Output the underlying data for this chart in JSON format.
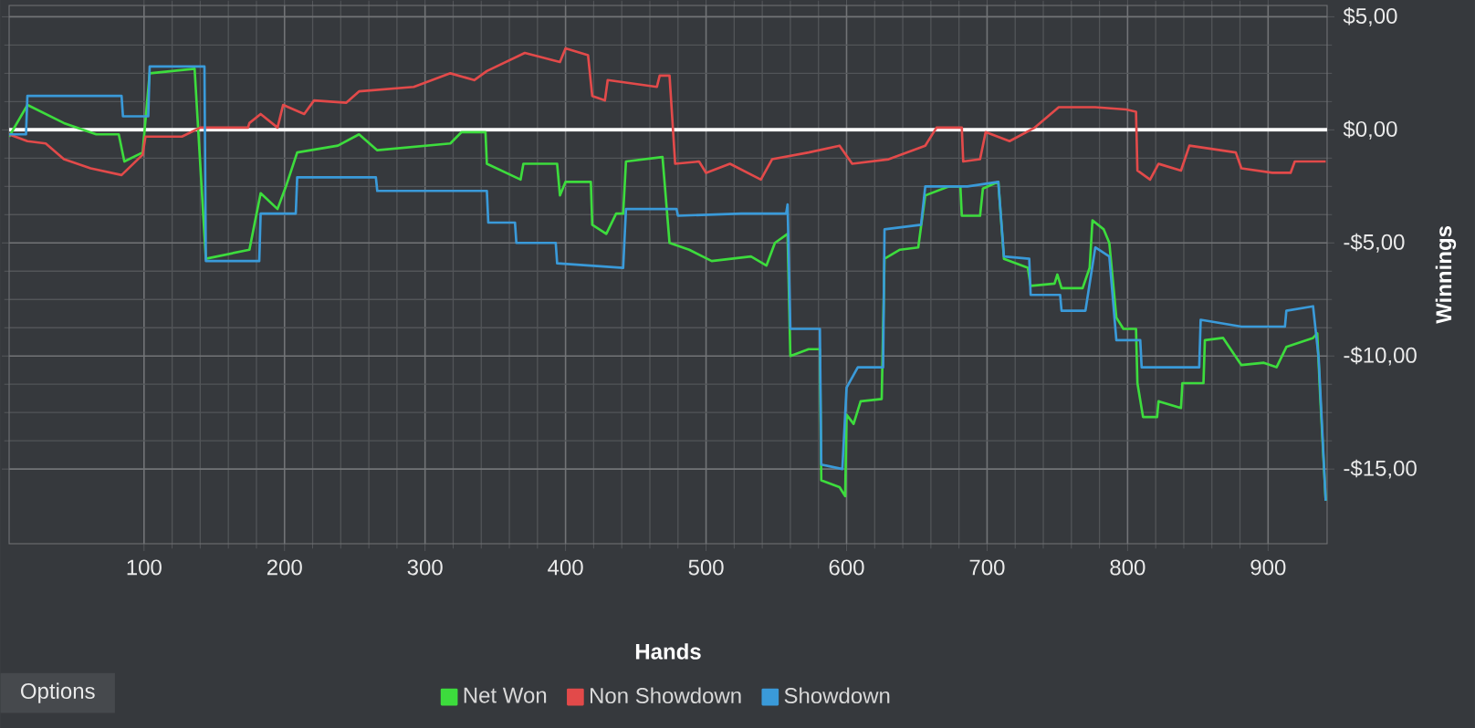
{
  "chart_data": {
    "type": "line",
    "xlabel": "Hands",
    "ylabel": "Winnings",
    "xlim": [
      4,
      942
    ],
    "ylim": [
      -18.3,
      5.5
    ],
    "xticks": [
      100,
      200,
      300,
      400,
      500,
      600,
      700,
      800,
      900
    ],
    "yticks": [
      {
        "value": 5,
        "label": "$5,00"
      },
      {
        "value": 0,
        "label": "$0,00"
      },
      {
        "value": -5,
        "label": "-$5,00"
      },
      {
        "value": -10,
        "label": "-$10,00"
      },
      {
        "value": -15,
        "label": "-$15,00"
      }
    ],
    "grid": true,
    "legend": "bottom",
    "marker": "none",
    "line_style": "solid",
    "ref_lines": [
      {
        "axis": "y",
        "value": 0,
        "color": "#ffffff"
      }
    ],
    "annotations": [
      "Options"
    ],
    "series": [
      {
        "name": "Net Won",
        "color": "#3ddc3d",
        "x": [
          4,
          17,
          43,
          66,
          82,
          86,
          99,
          104,
          136,
          144,
          175,
          183,
          195,
          201,
          209,
          238,
          253,
          266,
          318,
          326,
          343,
          344,
          368,
          370,
          394,
          396,
          400,
          418,
          419,
          429,
          436,
          441,
          443,
          469,
          474,
          488,
          504,
          532,
          543,
          549,
          558,
          560,
          573,
          581,
          582,
          595,
          599,
          600,
          605,
          610,
          625,
          627,
          638,
          651,
          656,
          673,
          681,
          682,
          695,
          697,
          708,
          712,
          729,
          731,
          748,
          750,
          753,
          768,
          773,
          775,
          783,
          787,
          792,
          797,
          806,
          807,
          811,
          821,
          822,
          838,
          839,
          854,
          855,
          868,
          881,
          897,
          906,
          913,
          932,
          935,
          937,
          941
        ],
        "values": [
          -0.3,
          1.1,
          0.3,
          -0.2,
          -0.2,
          -1.4,
          -1.0,
          2.5,
          2.7,
          -5.7,
          -5.3,
          -2.8,
          -3.5,
          -2.5,
          -1.0,
          -0.7,
          -0.2,
          -0.9,
          -0.6,
          -0.1,
          -0.1,
          -1.5,
          -2.2,
          -1.5,
          -1.5,
          -2.9,
          -2.3,
          -2.3,
          -4.2,
          -4.6,
          -3.7,
          -3.7,
          -1.4,
          -1.2,
          -5.0,
          -5.3,
          -5.8,
          -5.6,
          -6.0,
          -5.0,
          -4.6,
          -10.0,
          -9.7,
          -9.7,
          -15.5,
          -15.8,
          -16.2,
          -12.6,
          -13.0,
          -12.0,
          -11.9,
          -5.7,
          -5.3,
          -5.2,
          -2.9,
          -2.5,
          -2.5,
          -3.8,
          -3.8,
          -2.6,
          -2.3,
          -5.7,
          -6.1,
          -6.9,
          -6.8,
          -6.4,
          -7.0,
          -7.0,
          -6.1,
          -4.0,
          -4.4,
          -5.0,
          -8.3,
          -8.8,
          -8.8,
          -11.2,
          -12.7,
          -12.7,
          -12.0,
          -12.3,
          -11.2,
          -11.2,
          -9.3,
          -9.2,
          -10.4,
          -10.3,
          -10.5,
          -9.6,
          -9.2,
          -9.0,
          -11.7,
          -16.4
        ]
      },
      {
        "name": "Non Showdown",
        "color": "#e24a4a",
        "x": [
          4,
          17,
          30,
          43,
          62,
          84,
          99,
          101,
          127,
          140,
          174,
          175,
          183,
          195,
          199,
          214,
          221,
          244,
          253,
          292,
          318,
          335,
          344,
          371,
          396,
          400,
          416,
          419,
          428,
          430,
          465,
          467,
          474,
          478,
          495,
          500,
          517,
          539,
          547,
          573,
          595,
          604,
          630,
          656,
          664,
          682,
          683,
          695,
          699,
          716,
          734,
          751,
          777,
          799,
          806,
          807,
          816,
          822,
          838,
          844,
          877,
          881,
          903,
          916,
          919,
          941
        ],
        "values": [
          -0.2,
          -0.5,
          -0.6,
          -1.3,
          -1.7,
          -2.0,
          -1.1,
          -0.3,
          -0.3,
          0.1,
          0.1,
          0.3,
          0.7,
          0.1,
          1.1,
          0.7,
          1.3,
          1.2,
          1.7,
          1.9,
          2.5,
          2.2,
          2.6,
          3.4,
          3.0,
          3.6,
          3.3,
          1.5,
          1.3,
          2.2,
          1.9,
          2.4,
          2.4,
          -1.5,
          -1.4,
          -1.9,
          -1.5,
          -2.2,
          -1.3,
          -1.0,
          -0.7,
          -1.5,
          -1.3,
          -0.7,
          0.1,
          0.1,
          -1.4,
          -1.3,
          -0.1,
          -0.5,
          0.1,
          1.0,
          1.0,
          0.9,
          0.8,
          -1.8,
          -2.2,
          -1.5,
          -1.8,
          -0.7,
          -1.0,
          -1.7,
          -1.9,
          -1.9,
          -1.4,
          -1.4
        ]
      },
      {
        "name": "Showdown",
        "color": "#3a9ad9",
        "x": [
          4,
          16,
          17,
          84,
          85,
          103,
          104,
          143,
          144,
          182,
          183,
          208,
          209,
          265,
          266,
          344,
          345,
          364,
          365,
          393,
          394,
          441,
          443,
          479,
          480,
          525,
          557,
          558,
          560,
          581,
          582,
          597,
          600,
          608,
          626,
          627,
          653,
          656,
          686,
          708,
          712,
          730,
          731,
          752,
          753,
          770,
          777,
          787,
          792,
          809,
          810,
          851,
          852,
          881,
          912,
          913,
          932,
          936,
          941
        ],
        "values": [
          -0.2,
          -0.2,
          1.5,
          1.5,
          0.6,
          0.6,
          2.8,
          2.8,
          -5.8,
          -5.8,
          -3.7,
          -3.7,
          -2.1,
          -2.1,
          -2.7,
          -2.7,
          -4.1,
          -4.1,
          -5.0,
          -5.0,
          -5.9,
          -6.1,
          -3.5,
          -3.5,
          -3.8,
          -3.7,
          -3.7,
          -3.3,
          -8.8,
          -8.8,
          -14.8,
          -15.0,
          -11.4,
          -10.5,
          -10.5,
          -4.4,
          -4.2,
          -2.5,
          -2.5,
          -2.3,
          -5.6,
          -5.7,
          -7.3,
          -7.3,
          -8.0,
          -8.0,
          -5.2,
          -5.6,
          -9.3,
          -9.3,
          -10.5,
          -10.5,
          -8.4,
          -8.7,
          -8.7,
          -8.0,
          -7.8,
          -10.1,
          -16.4
        ]
      }
    ]
  }
}
